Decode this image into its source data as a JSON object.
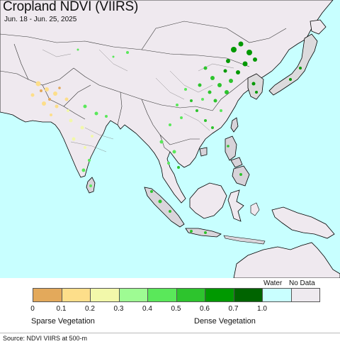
{
  "map": {
    "title": "Cropland NDVI (VIIRS)",
    "subtitle": "Jun. 18 - Jun. 25, 2025",
    "ocean_color": "#c8ffff",
    "land_color": "#efe9ef"
  },
  "legend": {
    "bins": [
      {
        "color": "#e3a95b"
      },
      {
        "color": "#fdde8a"
      },
      {
        "color": "#f2f8aa"
      },
      {
        "color": "#9efb93"
      },
      {
        "color": "#5ae85a"
      },
      {
        "color": "#2dc42d"
      },
      {
        "color": "#009900"
      },
      {
        "color": "#006400"
      },
      {
        "color": "#c9ffff"
      },
      {
        "color": "#eeeaef"
      }
    ],
    "ticks": [
      "0",
      "0.1",
      "0.2",
      "0.3",
      "0.4",
      "0.5",
      "0.6",
      "0.7",
      "1.0"
    ],
    "water_label": "Water",
    "nodata_label": "No Data",
    "sparse_label": "Sparse Vegetation",
    "dense_label": "Dense Vegetation"
  },
  "footer": {
    "source": "Source: NDVI VIIRS at 500-m"
  }
}
